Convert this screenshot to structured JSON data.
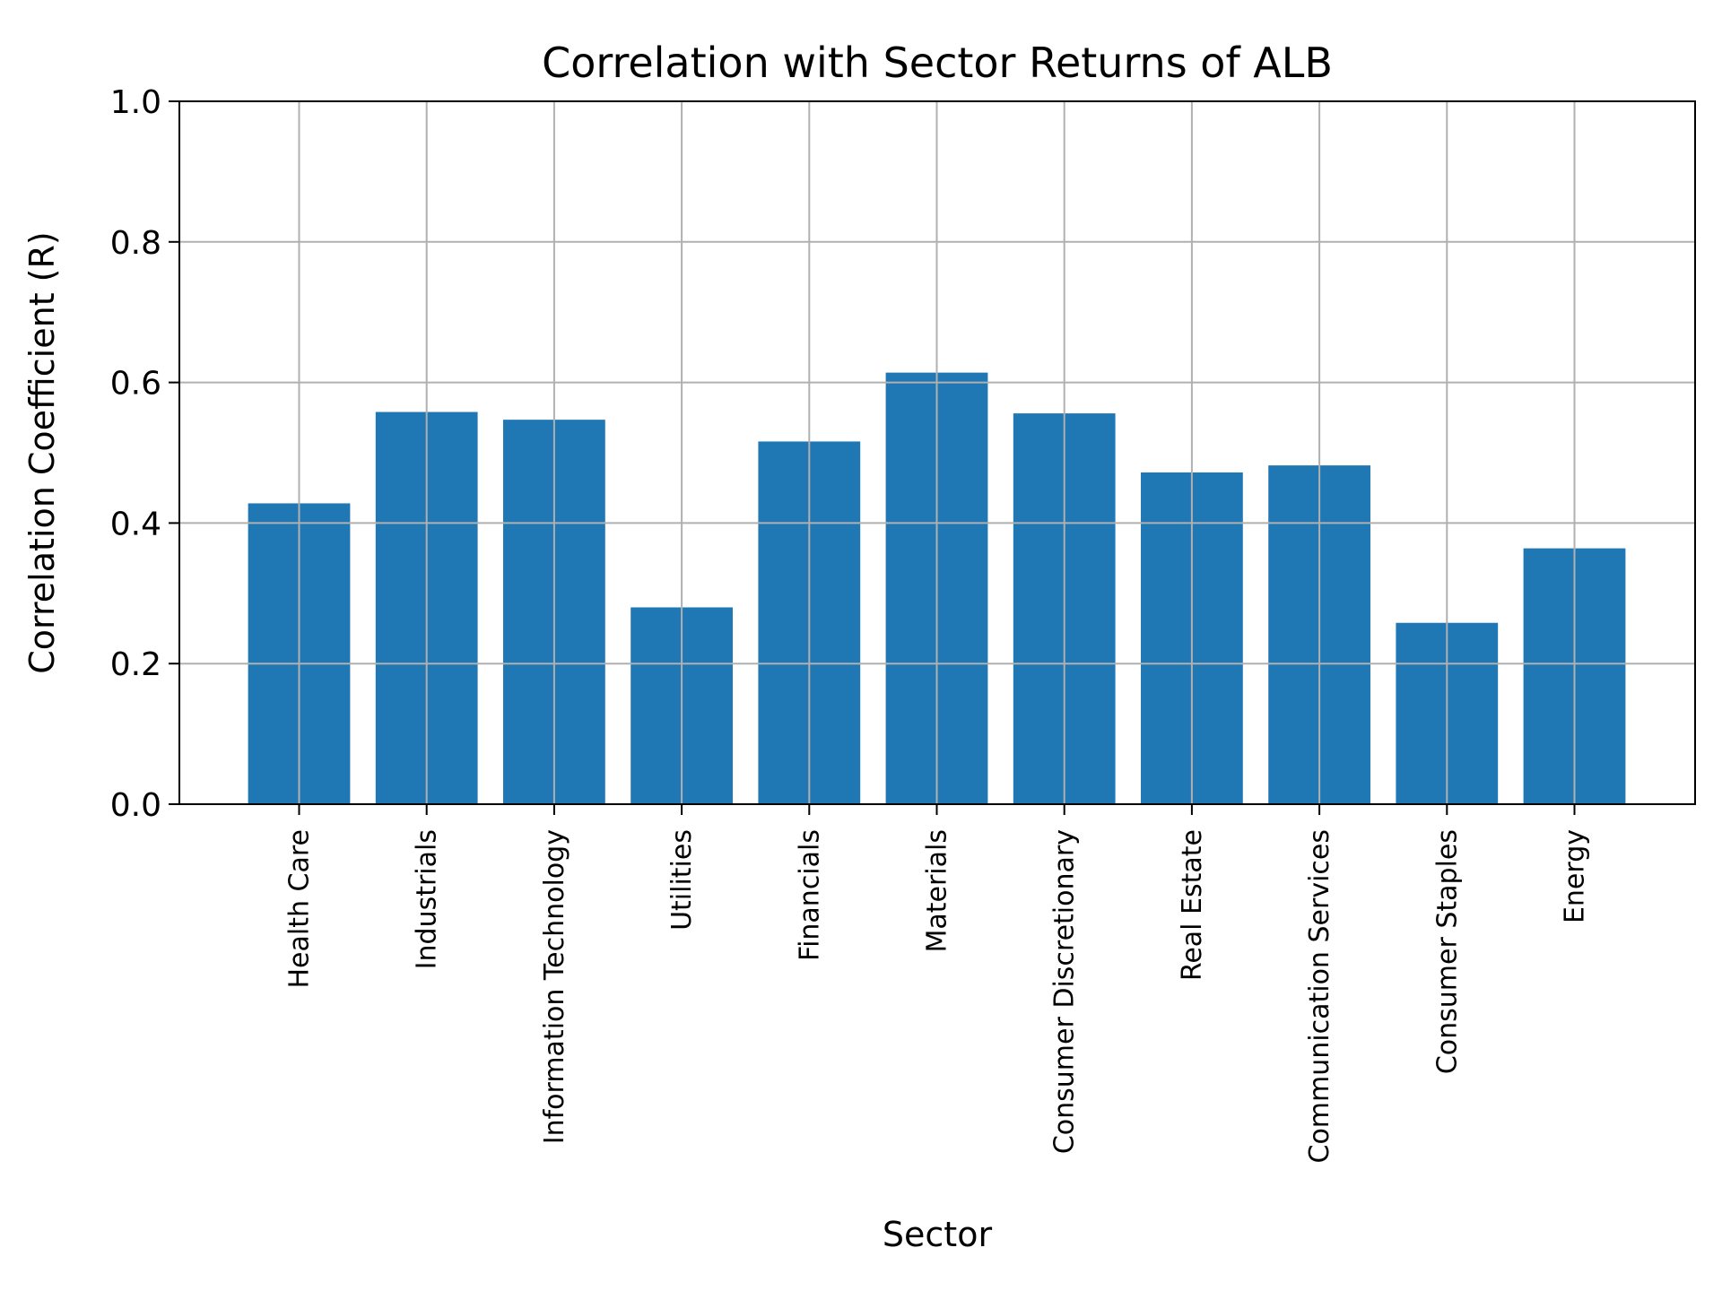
{
  "chart_data": {
    "type": "bar",
    "title": "Correlation with Sector Returns of ALB",
    "xlabel": "Sector",
    "ylabel": "Correlation Coefficient (R)",
    "ylim": [
      0,
      1.0
    ],
    "yticks": [
      "0.0",
      "0.2",
      "0.4",
      "0.6",
      "0.8",
      "1.0"
    ],
    "grid": true,
    "bar_color": "#1f77b4",
    "categories": [
      "Health Care",
      "Industrials",
      "Information Technology",
      "Utilities",
      "Financials",
      "Materials",
      "Consumer Discretionary",
      "Real Estate",
      "Communication Services",
      "Consumer Staples",
      "Energy"
    ],
    "values": [
      0.428,
      0.558,
      0.547,
      0.28,
      0.516,
      0.614,
      0.556,
      0.472,
      0.482,
      0.258,
      0.364
    ]
  }
}
